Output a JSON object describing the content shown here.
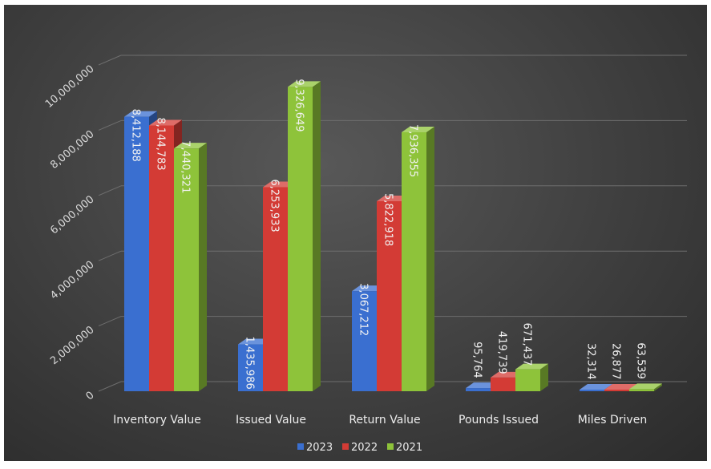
{
  "chart_data": {
    "type": "bar",
    "title": "",
    "xlabel": "",
    "ylabel": "",
    "ylim": [
      0,
      10000000
    ],
    "y_ticks": [
      "0",
      "2,000,000",
      "4,000,000",
      "6,000,000",
      "8,000,000",
      "10,000,000"
    ],
    "categories": [
      "Inventory Value",
      "Issued Value",
      "Return Value",
      "Pounds Issued",
      "Miles Driven"
    ],
    "series": [
      {
        "name": "2023",
        "color": "#3a6fd0",
        "values": [
          8412188,
          1435986,
          3067212,
          95764,
          32314
        ],
        "labels": [
          "8,412,188",
          "1,435,986",
          "3,067,212",
          "95,764",
          "32,314"
        ]
      },
      {
        "name": "2022",
        "color": "#d33b35",
        "values": [
          8144783,
          6253933,
          5822918,
          419739,
          26877
        ],
        "labels": [
          "8,144,783",
          "6,253,933",
          "5,822,918",
          "419,739",
          "26,877"
        ]
      },
      {
        "name": "2021",
        "color": "#8ec33a",
        "values": [
          7440321,
          9326649,
          7936355,
          671437,
          63539
        ],
        "labels": [
          "7,440,321",
          "9,326,649",
          "7,936,355",
          "671,437",
          "63,539"
        ]
      }
    ],
    "grid": true,
    "legend": "bottom",
    "style": "3d-column"
  }
}
